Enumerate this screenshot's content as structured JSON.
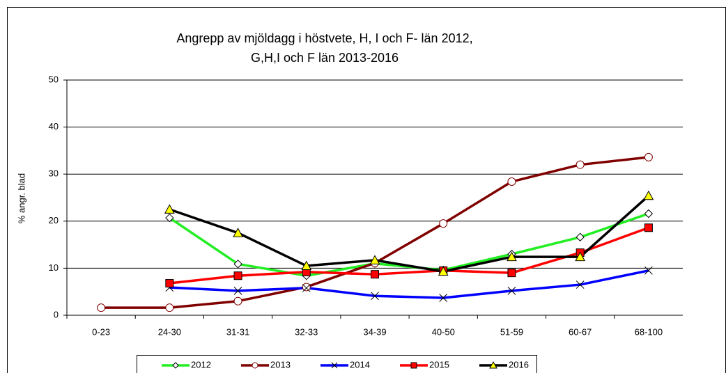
{
  "chart_data": {
    "type": "line",
    "title": [
      "Angrepp av mjöldagg i höstvete, H, I och F- län 2012,",
      "G,H,I och F län 2013-2016"
    ],
    "y_label": "% angr. blad",
    "categories": [
      "0-23",
      "24-30",
      "31-31",
      "32-33",
      "34-39",
      "40-50",
      "51-59",
      "60-67",
      "68-100"
    ],
    "series": [
      {
        "name": "2012",
        "color": "#22ee22",
        "marker": "diamond",
        "marker_fill": "#ffffff",
        "values": [
          null,
          20.7,
          10.9,
          8.4,
          11.0,
          9.6,
          13.0,
          16.6,
          21.6
        ]
      },
      {
        "name": "2013",
        "color": "#800000",
        "marker": "circle",
        "marker_fill": "#ffffff",
        "values": [
          1.6,
          1.6,
          3.0,
          6.0,
          11.1,
          19.5,
          28.4,
          32.0,
          33.6
        ]
      },
      {
        "name": "2014",
        "color": "#0000ff",
        "marker": "x",
        "marker_fill": "#ffffff",
        "values": [
          null,
          5.9,
          5.2,
          5.8,
          4.1,
          3.7,
          5.2,
          6.5,
          9.5
        ]
      },
      {
        "name": "2015",
        "color": "#ff0000",
        "marker": "square",
        "marker_fill": "#ff0000",
        "values": [
          null,
          6.8,
          8.4,
          9.2,
          8.7,
          9.5,
          9.0,
          13.3,
          18.6
        ]
      },
      {
        "name": "2016",
        "color": "#000000",
        "marker": "triangle",
        "marker_fill": "#ffff00",
        "values": [
          null,
          22.5,
          17.5,
          10.5,
          11.7,
          9.3,
          12.4,
          12.4,
          25.4
        ]
      }
    ],
    "ylim": [
      0,
      50
    ],
    "yticks": [
      0,
      10,
      20,
      30,
      40,
      50
    ],
    "grid": true
  }
}
